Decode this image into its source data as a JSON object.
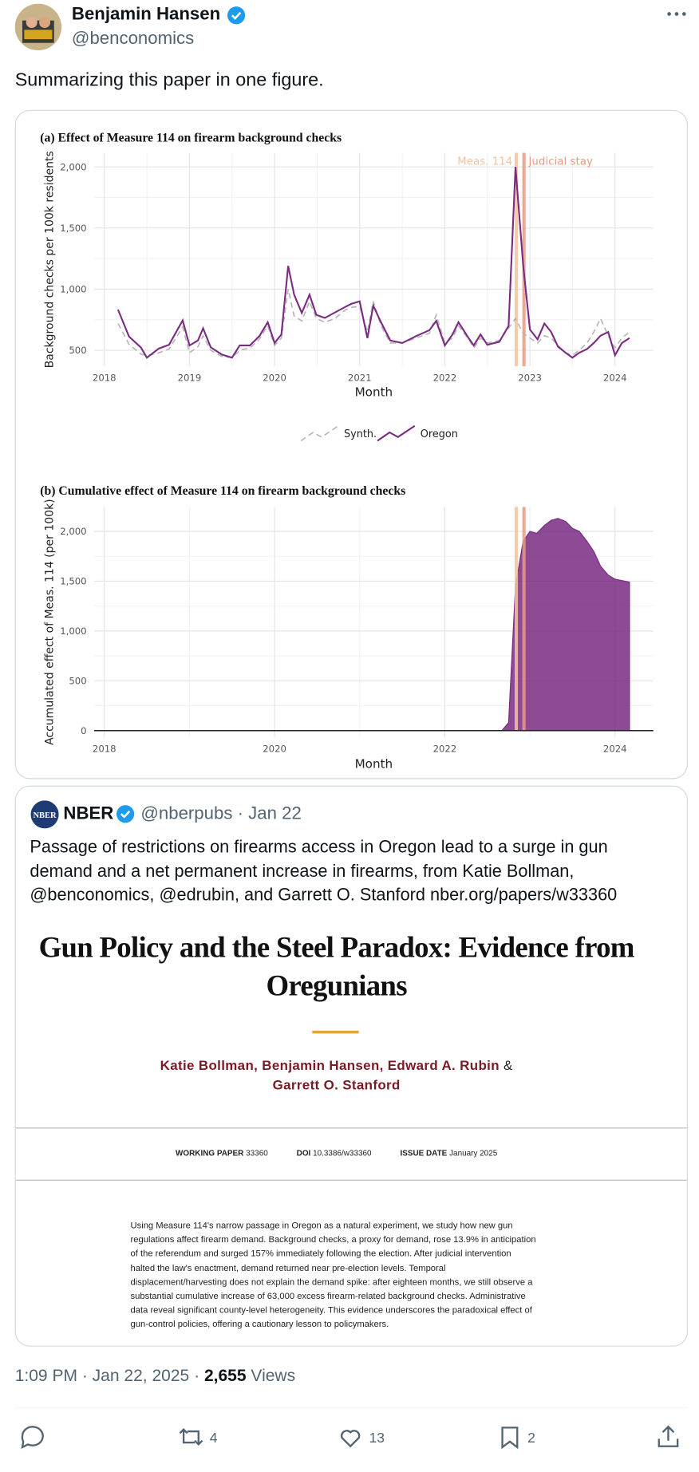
{
  "tweet": {
    "author_name": "Benjamin Hansen",
    "author_handle": "@benconomics",
    "text": "Summarizing this paper in one figure.",
    "timestamp": "1:09 PM · Jan 22, 2025 ·",
    "views_count": "2,655",
    "views_label": "Views",
    "retweets": "4",
    "likes": "13",
    "bookmarks": "2"
  },
  "chart_data": [
    {
      "type": "line",
      "title": "(a) Effect of Measure 114 on firearm background checks",
      "x_label": "Month",
      "y_label": "Background checks per 100k residents",
      "x": [
        2018.16,
        2018.29,
        2018.43,
        2018.5,
        2018.64,
        2018.76,
        2018.92,
        2019.0,
        2019.1,
        2019.16,
        2019.25,
        2019.38,
        2019.5,
        2019.59,
        2019.71,
        2019.82,
        2019.92,
        2020.0,
        2020.08,
        2020.16,
        2020.23,
        2020.32,
        2020.41,
        2020.49,
        2020.59,
        2020.71,
        2020.83,
        2020.9,
        2021.0,
        2021.09,
        2021.16,
        2021.25,
        2021.36,
        2021.5,
        2021.66,
        2021.82,
        2021.9,
        2022.0,
        2022.09,
        2022.16,
        2022.28,
        2022.34,
        2022.42,
        2022.5,
        2022.64,
        2022.75,
        2022.83,
        2022.92,
        2023.0,
        2023.09,
        2023.17,
        2023.25,
        2023.33,
        2023.42,
        2023.5,
        2023.58,
        2023.67,
        2023.75,
        2023.83,
        2023.92,
        2024.0,
        2024.08,
        2024.17
      ],
      "series": [
        {
          "name": "Synth.",
          "color": "#b5b5b5",
          "dashed": true,
          "values": [
            720,
            550,
            470,
            455,
            480,
            510,
            690,
            480,
            530,
            620,
            500,
            450,
            440,
            500,
            520,
            590,
            700,
            540,
            600,
            1000,
            780,
            740,
            900,
            760,
            730,
            760,
            830,
            850,
            860,
            650,
            900,
            700,
            560,
            560,
            600,
            640,
            790,
            560,
            600,
            700,
            590,
            520,
            600,
            560,
            580,
            680,
            760,
            640,
            600,
            560,
            620,
            600,
            540,
            480,
            460,
            500,
            560,
            650,
            760,
            620,
            520,
            600,
            650
          ]
        },
        {
          "name": "Oregon",
          "color": "#7a2b82",
          "dashed": false,
          "values": [
            833,
            613,
            523,
            440,
            515,
            545,
            745,
            540,
            580,
            680,
            525,
            465,
            440,
            540,
            540,
            615,
            730,
            560,
            630,
            1190,
            955,
            805,
            955,
            790,
            765,
            810,
            855,
            880,
            900,
            600,
            865,
            730,
            580,
            560,
            615,
            665,
            740,
            540,
            630,
            730,
            600,
            540,
            630,
            545,
            570,
            700,
            2000,
            1200,
            670,
            590,
            720,
            650,
            530,
            480,
            440,
            480,
            510,
            560,
            620,
            650,
            460,
            560,
            600
          ]
        }
      ],
      "events": [
        {
          "label": "Meas. 114",
          "x": 2022.84,
          "color": "#f4c2a0"
        },
        {
          "label": "Judicial stay",
          "x": 2022.93,
          "color": "#e89a80"
        }
      ],
      "xlim": [
        2017.88,
        2024.45
      ],
      "ylim": [
        370,
        2115
      ],
      "xticks": [
        2018,
        2019,
        2020,
        2021,
        2022,
        2023,
        2024
      ],
      "yticks": [
        500,
        {
          "value": 1000,
          "label": "1,000"
        },
        {
          "value": 1500,
          "label": "1,500"
        },
        {
          "value": 2000,
          "label": "2,000"
        }
      ],
      "grid": true
    },
    {
      "type": "area",
      "title": "(b) Cumulative effect of Measure 114 on firearm background checks",
      "x_label": "Month",
      "y_label": "Accumulated effect of Meas. 114 (per 100k)",
      "x": [
        2018.16,
        2022.67,
        2022.75,
        2022.83,
        2022.92,
        2023.0,
        2023.08,
        2023.17,
        2023.25,
        2023.33,
        2023.42,
        2023.5,
        2023.58,
        2023.67,
        2023.75,
        2023.83,
        2023.92,
        2024.0,
        2024.17
      ],
      "values": [
        0,
        0,
        80,
        1450,
        1900,
        2000,
        1980,
        2060,
        2110,
        2130,
        2100,
        2030,
        2000,
        1900,
        1800,
        1650,
        1560,
        1520,
        1490
      ],
      "color": "#7a2b82",
      "events": [
        {
          "x": 2022.84,
          "color": "#f4c2a0"
        },
        {
          "x": 2022.93,
          "color": "#e89a80"
        }
      ],
      "xlim": [
        2017.88,
        2024.45
      ],
      "ylim": [
        -65,
        2245
      ],
      "xticks": [
        2018,
        2020,
        2022,
        2024
      ],
      "yticks": [
        0,
        500,
        {
          "value": 1000,
          "label": "1,000"
        },
        {
          "value": 1500,
          "label": "1,500"
        },
        {
          "value": 2000,
          "label": "2,000"
        }
      ],
      "grid": true
    }
  ],
  "quote": {
    "author_name": "NBER",
    "avatar_text": "NBER",
    "meta": "@nberpubs · Jan 22",
    "text": "Passage of restrictions on firearms access in Oregon lead to a surge in gun demand and a net permanent increase in firearms, from Katie Bollman, @benconomics, @edrubin, and Garrett O. Stanford nber.org/papers/w33360",
    "paper": {
      "title": "Gun Policy and the Steel Paradox: Evidence from Oregunians",
      "authors": [
        "Katie Bollman,",
        "Benjamin Hansen,",
        "Edward A. Rubin",
        "Garrett O. Stanford"
      ],
      "authors_conjunction": "&",
      "meta": [
        {
          "label": "WORKING PAPER",
          "value": "33360"
        },
        {
          "label": "DOI",
          "value": "10.3386/w33360"
        },
        {
          "label": "ISSUE DATE",
          "value": "January 2025"
        }
      ],
      "abstract": "Using Measure 114's narrow passage in Oregon as a natural experiment, we study how new gun regulations affect firearm demand. Background checks, a proxy for demand, rose 13.9% in anticipation of the referendum and surged 157% immediately following the election. After judicial intervention halted the law's enactment, demand returned near pre-election levels. Temporal displacement/harvesting does not explain the demand spike: after eighteen months, we still observe a substantial cumulative increase of 63,000 excess firearm-related background checks. Administrative data reveal significant county-level heterogeneity. This evidence underscores the paradoxical effect of gun-control policies, offering a cautionary lesson to policymakers."
    }
  }
}
